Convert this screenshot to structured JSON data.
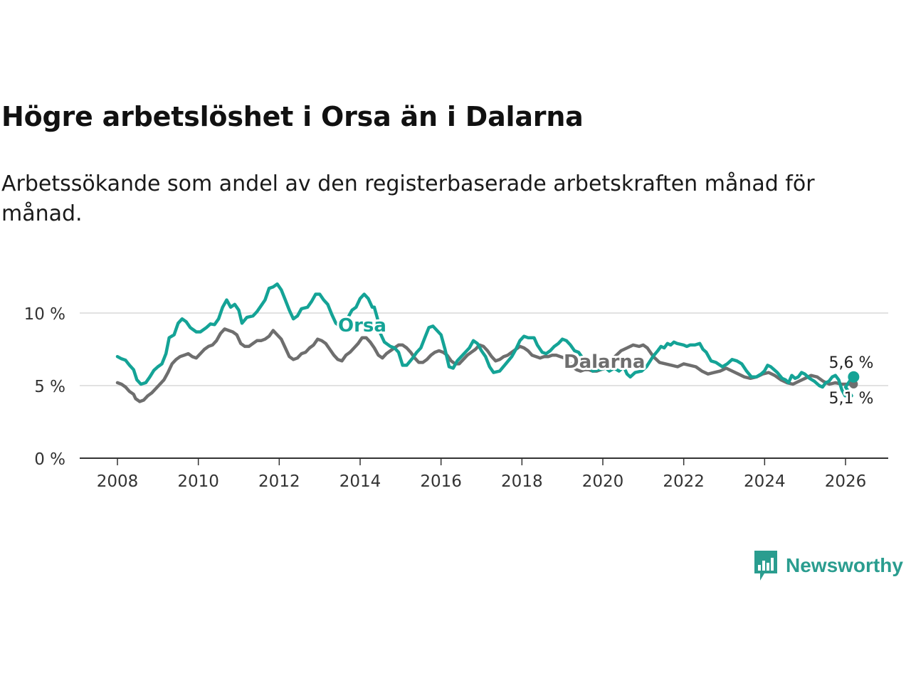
{
  "header": {
    "title": "Högre arbetslöshet i Orsa än i Dalarna",
    "subtitle": "Arbetssökande som andel av den registerbaserade arbetskraften månad för månad."
  },
  "branding": {
    "name": "Newsworthy"
  },
  "chart_data": {
    "type": "line",
    "title": "Högre arbetslöshet i Orsa än i Dalarna",
    "subtitle": "Arbetssökande som andel av den registerbaserade arbetskraften månad för månad.",
    "xlabel": "",
    "ylabel": "",
    "xlim": [
      2008,
      2026.5
    ],
    "ylim": [
      0,
      12
    ],
    "x_ticks": [
      2008,
      2010,
      2012,
      2014,
      2016,
      2018,
      2020,
      2022,
      2024,
      2026
    ],
    "x_tick_labels": [
      "2008",
      "2010",
      "2012",
      "2014",
      "2016",
      "2018",
      "2020",
      "2022",
      "2024",
      "2026"
    ],
    "y_ticks": [
      0,
      5,
      10
    ],
    "y_tick_labels": [
      "0 %",
      "5 %",
      "10 %"
    ],
    "grid": true,
    "colors": {
      "Orsa": "#14a396",
      "Dalarna": "#6e6e6e",
      "grid": "#d9d9d9",
      "axis": "#333333"
    },
    "series": [
      {
        "name": "Orsa",
        "label": "Orsa",
        "end_label": "5,6 %",
        "points": [
          [
            2008.0,
            6.9
          ],
          [
            2008.15,
            6.8
          ],
          [
            2008.3,
            6.3
          ],
          [
            2008.4,
            5.9
          ],
          [
            2008.5,
            5.2
          ],
          [
            2008.6,
            5.1
          ],
          [
            2008.75,
            5.6
          ],
          [
            2008.9,
            6.2
          ],
          [
            2009.0,
            6.5
          ],
          [
            2009.15,
            7.3
          ],
          [
            2009.25,
            8.3
          ],
          [
            2009.4,
            8.7
          ],
          [
            2009.5,
            9.5
          ],
          [
            2009.6,
            9.4
          ],
          [
            2009.75,
            8.9
          ],
          [
            2009.9,
            8.6
          ],
          [
            2010.0,
            8.7
          ],
          [
            2010.15,
            9.1
          ],
          [
            2010.3,
            9.3
          ],
          [
            2010.5,
            10.1
          ],
          [
            2010.6,
            10.8
          ],
          [
            2010.7,
            10.4
          ],
          [
            2010.8,
            10.5
          ],
          [
            2010.9,
            9.8
          ],
          [
            2011.0,
            9.2
          ],
          [
            2011.1,
            9.5
          ],
          [
            2011.25,
            9.8
          ],
          [
            2011.4,
            10.1
          ],
          [
            2011.5,
            10.6
          ],
          [
            2011.6,
            11.2
          ],
          [
            2011.75,
            11.8
          ],
          [
            2011.9,
            11.9
          ],
          [
            2012.0,
            11.7
          ],
          [
            2012.15,
            10.8
          ],
          [
            2012.3,
            9.8
          ],
          [
            2012.4,
            9.4
          ],
          [
            2012.5,
            9.6
          ],
          [
            2012.65,
            10.3
          ],
          [
            2012.8,
            10.4
          ],
          [
            2012.9,
            10.9
          ],
          [
            2013.0,
            11.3
          ],
          [
            2013.1,
            11.2
          ],
          [
            2013.25,
            10.7
          ],
          [
            2013.4,
            10.0
          ],
          [
            2013.5,
            9.2
          ],
          [
            2013.6,
            9.0
          ],
          [
            2013.75,
            9.5
          ],
          [
            2013.9,
            9.9
          ],
          [
            2014.0,
            10.4
          ],
          [
            2014.15,
            10.8
          ],
          [
            2014.25,
            11.3
          ],
          [
            2014.35,
            10.9
          ],
          [
            2014.5,
            10.3
          ],
          [
            2014.6,
            8.9
          ],
          [
            2014.75,
            7.9
          ],
          [
            2014.9,
            7.9
          ],
          [
            2015.0,
            8.1
          ],
          [
            2015.15,
            7.4
          ],
          [
            2015.3,
            6.4
          ],
          [
            2015.4,
            6.3
          ],
          [
            2015.5,
            6.7
          ],
          [
            2015.65,
            7.3
          ],
          [
            2015.8,
            7.9
          ],
          [
            2015.9,
            8.7
          ],
          [
            2016.0,
            9.1
          ],
          [
            2016.15,
            8.6
          ],
          [
            2016.3,
            7.5
          ],
          [
            2016.4,
            6.7
          ],
          [
            2016.5,
            6.2
          ],
          [
            2016.6,
            6.2
          ],
          [
            2016.75,
            6.5
          ],
          [
            2016.9,
            7.2
          ],
          [
            2017.0,
            8.0
          ],
          [
            2017.15,
            7.8
          ],
          [
            2017.3,
            7.1
          ],
          [
            2017.4,
            6.5
          ],
          [
            2017.5,
            5.9
          ],
          [
            2017.6,
            6.0
          ],
          [
            2017.75,
            6.5
          ],
          [
            2017.9,
            7.1
          ],
          [
            2018.0,
            7.5
          ],
          [
            2018.15,
            8.4
          ],
          [
            2018.3,
            8.2
          ],
          [
            2018.45,
            8.2
          ],
          [
            2018.55,
            7.6
          ],
          [
            2018.7,
            7.2
          ],
          [
            2018.85,
            7.4
          ],
          [
            2019.0,
            7.8
          ],
          [
            2019.1,
            8.2
          ],
          [
            2019.25,
            7.9
          ],
          [
            2019.4,
            7.3
          ],
          [
            2019.5,
            7.0
          ],
          [
            2019.6,
            6.6
          ],
          [
            2019.75,
            6.2
          ],
          [
            2019.85,
            6.0
          ],
          [
            2020.0,
            6.1
          ],
          [
            2020.2,
            6.1
          ],
          [
            2020.35,
            5.9
          ],
          [
            2020.5,
            6.3
          ],
          [
            2020.6,
            6.6
          ]
        ],
        "segments": [
          [
            [
              2008.0,
              7.0
            ],
            [
              2008.15,
              6.8
            ],
            [
              2008.3,
              6.3
            ],
            [
              2008.4,
              6.0
            ],
            [
              2008.5,
              5.3
            ],
            [
              2008.6,
              5.1
            ],
            [
              2008.75,
              5.4
            ],
            [
              2008.9,
              6.1
            ],
            [
              2009.05,
              6.4
            ],
            [
              2009.2,
              7.2
            ],
            [
              2009.3,
              8.4
            ],
            [
              2009.45,
              8.6
            ],
            [
              2009.55,
              9.3
            ],
            [
              2009.65,
              9.6
            ],
            [
              2009.8,
              9.3
            ],
            [
              2009.95,
              8.8
            ],
            [
              2010.1,
              8.6
            ],
            [
              2010.25,
              8.9
            ],
            [
              2010.35,
              9.2
            ],
            [
              2010.5,
              9.2
            ],
            [
              2010.6,
              9.6
            ],
            [
              2010.72,
              10.3
            ],
            [
              2010.8,
              10.9
            ],
            [
              2010.9,
              10.5
            ],
            [
              2011.0,
              10.6
            ],
            [
              2011.08,
              10.2
            ],
            [
              2011.15,
              9.3
            ],
            [
              2011.25,
              9.6
            ],
            [
              2011.4,
              9.7
            ],
            [
              2011.5,
              9.9
            ],
            [
              2011.6,
              10.3
            ],
            [
              2011.7,
              10.7
            ],
            [
              2011.8,
              11.2
            ],
            [
              2011.9,
              11.8
            ],
            [
              2012.0,
              11.9
            ],
            [
              2012.1,
              12.0
            ],
            [
              2012.2,
              11.4
            ],
            [
              2012.3,
              10.8
            ],
            [
              2012.4,
              10.1
            ],
            [
              2012.5,
              9.8
            ],
            [
              2012.6,
              10.0
            ],
            [
              2012.7,
              10.4
            ],
            [
              2012.8,
              10.4
            ],
            [
              2012.9,
              10.6
            ],
            [
              2013.0,
              11.0
            ],
            [
              2013.1,
              11.3
            ],
            [
              2013.2,
              11.3
            ],
            [
              2013.3,
              10.8
            ],
            [
              2013.4,
              10.7
            ],
            [
              2013.5,
              10.2
            ],
            [
              2013.6,
              9.3
            ],
            [
              2013.7,
              9.1
            ],
            [
              2013.8,
              9.4
            ],
            [
              2013.9,
              9.7
            ],
            [
              2014.0,
              10.1
            ],
            [
              2014.1,
              10.4
            ],
            [
              2014.2,
              10.9
            ],
            [
              2014.3,
              11.4
            ],
            [
              2014.4,
              11.1
            ],
            [
              2014.5,
              10.4
            ],
            [
              2014.6,
              10.4
            ],
            [
              2014.7,
              9.4
            ],
            [
              2014.8,
              8.6
            ],
            [
              2014.9,
              8.0
            ],
            [
              2015.0,
              7.6
            ]
          ]
        ],
        "end_value": 5.6
      },
      {
        "name": "Dalarna",
        "label": "Dalarna",
        "end_label": "5,1 %",
        "end_value": 5.1
      }
    ]
  }
}
